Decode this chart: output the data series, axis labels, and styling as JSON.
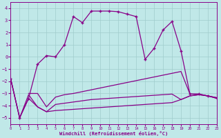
{
  "xlabel": "Windchill (Refroidissement éolien,°C)",
  "bg_color": "#c0e8e8",
  "grid_color": "#a0cccc",
  "line_color": "#880088",
  "xlim": [
    0,
    23
  ],
  "ylim": [
    -5.5,
    4.5
  ],
  "yticks": [
    -5,
    -4,
    -3,
    -2,
    -1,
    0,
    1,
    2,
    3,
    4
  ],
  "xticks": [
    0,
    1,
    2,
    3,
    4,
    5,
    6,
    7,
    8,
    9,
    10,
    11,
    12,
    13,
    14,
    15,
    16,
    17,
    18,
    19,
    20,
    21,
    22,
    23
  ],
  "line1_x": [
    0,
    1,
    2,
    3,
    4,
    5,
    6,
    7,
    8,
    9,
    10,
    11,
    12,
    13,
    14,
    15,
    16,
    17,
    18,
    19,
    20,
    21,
    22,
    23
  ],
  "line1_y": [
    -1.8,
    -5.0,
    -3.4,
    -0.6,
    0.1,
    0.0,
    1.0,
    3.3,
    2.8,
    3.75,
    3.75,
    3.75,
    3.7,
    3.5,
    3.3,
    -0.2,
    0.7,
    2.2,
    2.9,
    0.5,
    -3.05,
    -3.05,
    -3.2,
    -3.35
  ],
  "line2_x": [
    2,
    3,
    4,
    5,
    6,
    7,
    8,
    9,
    10,
    11,
    12,
    13,
    14,
    15,
    16,
    17,
    18,
    19,
    20,
    21,
    22,
    23
  ],
  "line2_y": [
    -3.0,
    -3.0,
    -4.1,
    -3.3,
    -3.1,
    -3.0,
    -2.85,
    -2.7,
    -2.55,
    -2.4,
    -2.25,
    -2.1,
    -1.95,
    -1.8,
    -1.65,
    -1.5,
    -1.35,
    -1.2,
    -3.05,
    -3.05,
    -3.2,
    -3.35
  ],
  "line3_x": [
    0,
    1,
    2,
    3,
    4,
    5,
    6,
    7,
    8,
    9,
    10,
    11,
    12,
    13,
    14,
    15,
    16,
    17,
    18,
    19,
    20,
    21,
    22,
    23
  ],
  "line3_y": [
    -1.8,
    -5.0,
    -3.4,
    -4.1,
    -4.5,
    -3.9,
    -3.8,
    -3.7,
    -3.6,
    -3.5,
    -3.45,
    -3.4,
    -3.35,
    -3.3,
    -3.25,
    -3.2,
    -3.15,
    -3.1,
    -3.05,
    -3.5,
    -3.2,
    -3.1,
    -3.2,
    -3.4
  ],
  "line4_x": [
    0,
    1,
    2,
    3,
    4,
    5,
    6,
    7,
    8,
    9,
    10,
    11,
    12,
    13,
    14,
    15,
    16,
    17,
    18,
    19,
    20,
    21,
    22,
    23
  ],
  "line4_y": [
    -1.8,
    -5.0,
    -3.1,
    -4.1,
    -4.5,
    -4.4,
    -4.35,
    -4.3,
    -4.25,
    -4.2,
    -4.15,
    -4.1,
    -4.05,
    -4.0,
    -3.95,
    -3.9,
    -3.85,
    -3.8,
    -3.75,
    -3.5,
    -3.2,
    -3.1,
    -3.2,
    -3.4
  ]
}
